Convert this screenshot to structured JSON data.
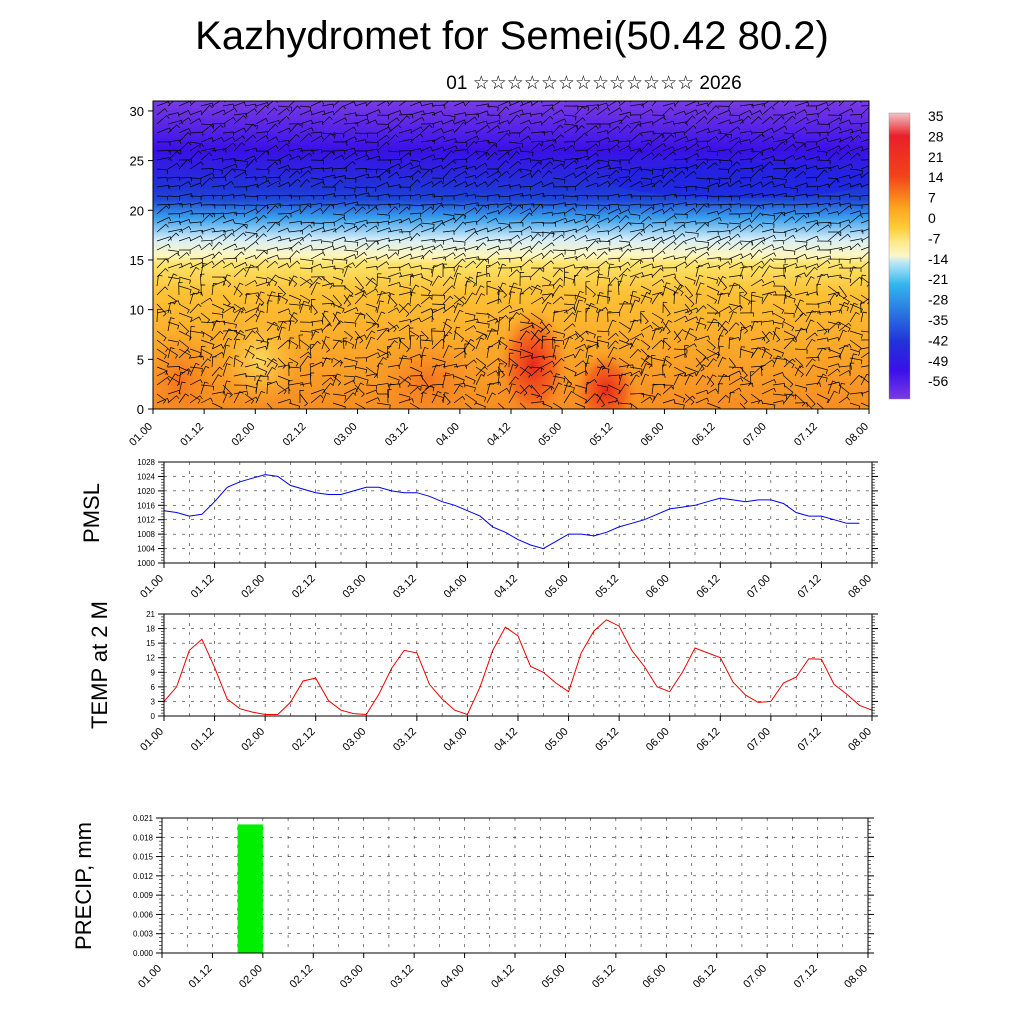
{
  "title": "Kazhydromet for Semei(50.42 80.2)",
  "subtitle": "01 ☆☆☆☆☆☆☆☆☆☆☆☆☆ 2026",
  "chart_data": [
    {
      "type": "heatmap",
      "title": "Kazhydromet for Semei(50.42 80.2)",
      "subtitle": "01 ☆☆☆☆☆☆☆☆☆☆☆☆☆ 2026",
      "x_tick_labels": [
        "01.00",
        "01.12",
        "02.00",
        "02.12",
        "03.00",
        "03.12",
        "04.00",
        "04.12",
        "05.00",
        "05.12",
        "06.00",
        "06.12",
        "07.00",
        "07.12",
        "08.00"
      ],
      "y_tick_labels": [
        "0",
        "5",
        "10",
        "15",
        "20",
        "25",
        "30"
      ],
      "ylim": [
        0,
        31
      ],
      "colorbar_labels": [
        "35",
        "28",
        "21",
        "14",
        "7",
        "0",
        "-7",
        "-14",
        "-21",
        "-28",
        "-35",
        "-42",
        "-49",
        "-56"
      ],
      "colorbar_colors": [
        "#f2c4c8",
        "#e8202a",
        "#f2421a",
        "#f7751a",
        "#fba31f",
        "#fdcc35",
        "#fde98a",
        "#fcf6c8",
        "#bfe9f6",
        "#33b6ee",
        "#2a74e0",
        "#2033d8",
        "#3a10e8",
        "#7a3ae6"
      ],
      "values_celsius_by_level": [
        {
          "height": 0,
          "temp": 9
        },
        {
          "height": 5,
          "temp": 7
        },
        {
          "height": 10,
          "temp": 4
        },
        {
          "height": 15,
          "temp": 0
        },
        {
          "height": 18,
          "temp": -16
        },
        {
          "height": 21,
          "temp": -45
        },
        {
          "height": 25,
          "temp": -56
        },
        {
          "height": 31,
          "temp": -50
        }
      ],
      "overlay": "wind barbs"
    },
    {
      "type": "line",
      "ylabel": "PMSL",
      "ylim": [
        1000,
        1028
      ],
      "y_tick_labels": [
        "1000",
        "1004",
        "1008",
        "1012",
        "1016",
        "1020",
        "1024",
        "1028"
      ],
      "x_tick_labels": [
        "01.00",
        "01.12",
        "02.00",
        "02.12",
        "03.00",
        "03.12",
        "04.00",
        "04.12",
        "05.00",
        "05.12",
        "06.00",
        "06.12",
        "07.00",
        "07.12",
        "08.00"
      ],
      "color": "#0000ee",
      "series": [
        {
          "values": [
            1014.5,
            1014,
            1013,
            1013.5,
            1017,
            1021,
            1022.5,
            1023.5,
            1024.5,
            1024,
            1021.5,
            1020.5,
            1019.5,
            1019,
            1019,
            1020,
            1021,
            1021,
            1020,
            1019.5,
            1019.5,
            1018.5,
            1017,
            1016,
            1014.5,
            1013,
            1010,
            1008.5,
            1006.5,
            1005,
            1004,
            1006,
            1008,
            1008,
            1007.5,
            1008.5,
            1010,
            1011,
            1012,
            1013.5,
            1015,
            1015.5,
            1016,
            1017,
            1018,
            1017.5,
            1017,
            1017.5,
            1017.5,
            1016.5,
            1014,
            1013,
            1013,
            1012,
            1011,
            1011
          ]
        }
      ]
    },
    {
      "type": "line",
      "ylabel": "TEMP at 2 M",
      "ylim": [
        0,
        21
      ],
      "y_tick_labels": [
        "0",
        "3",
        "6",
        "9",
        "12",
        "15",
        "18",
        "21"
      ],
      "x_tick_labels": [
        "01.00",
        "01.12",
        "02.00",
        "02.12",
        "03.00",
        "03.12",
        "04.00",
        "04.12",
        "05.00",
        "05.12",
        "06.00",
        "06.12",
        "07.00",
        "07.12",
        "08.00"
      ],
      "color": "#ee0000",
      "series": [
        {
          "values": [
            3,
            6,
            13.5,
            15.8,
            10,
            3.5,
            1.5,
            0.8,
            0.3,
            0.3,
            2.8,
            7.2,
            7.8,
            3.2,
            1.2,
            0.5,
            0.3,
            4.5,
            9.8,
            13.5,
            13,
            6.5,
            3.5,
            1.2,
            0.3,
            6,
            13.5,
            18.3,
            16.5,
            10.2,
            9,
            6.8,
            5,
            13,
            17.5,
            19.8,
            18.5,
            13.5,
            10.2,
            6,
            5,
            9,
            14,
            13,
            12,
            7,
            4.3,
            2.8,
            3,
            6.8,
            8,
            11.8,
            11.7,
            6.5,
            4.5,
            2.2,
            1.2
          ]
        }
      ]
    },
    {
      "type": "bar",
      "ylabel": "PRECIP, mm",
      "ylim": [
        0,
        0.021
      ],
      "y_tick_labels": [
        "0.000",
        "0.003",
        "0.006",
        "0.009",
        "0.012",
        "0.015",
        "0.018",
        "0.021"
      ],
      "x_tick_labels": [
        "01.00",
        "01.12",
        "02.00",
        "02.12",
        "03.00",
        "03.12",
        "04.00",
        "04.12",
        "05.00",
        "05.12",
        "06.00",
        "06.12",
        "07.00",
        "07.12",
        "08.00"
      ],
      "color": "#00ee00",
      "bars": [
        {
          "x_start": "01.18",
          "x_end": "02.00",
          "value": 0.02
        }
      ]
    }
  ]
}
